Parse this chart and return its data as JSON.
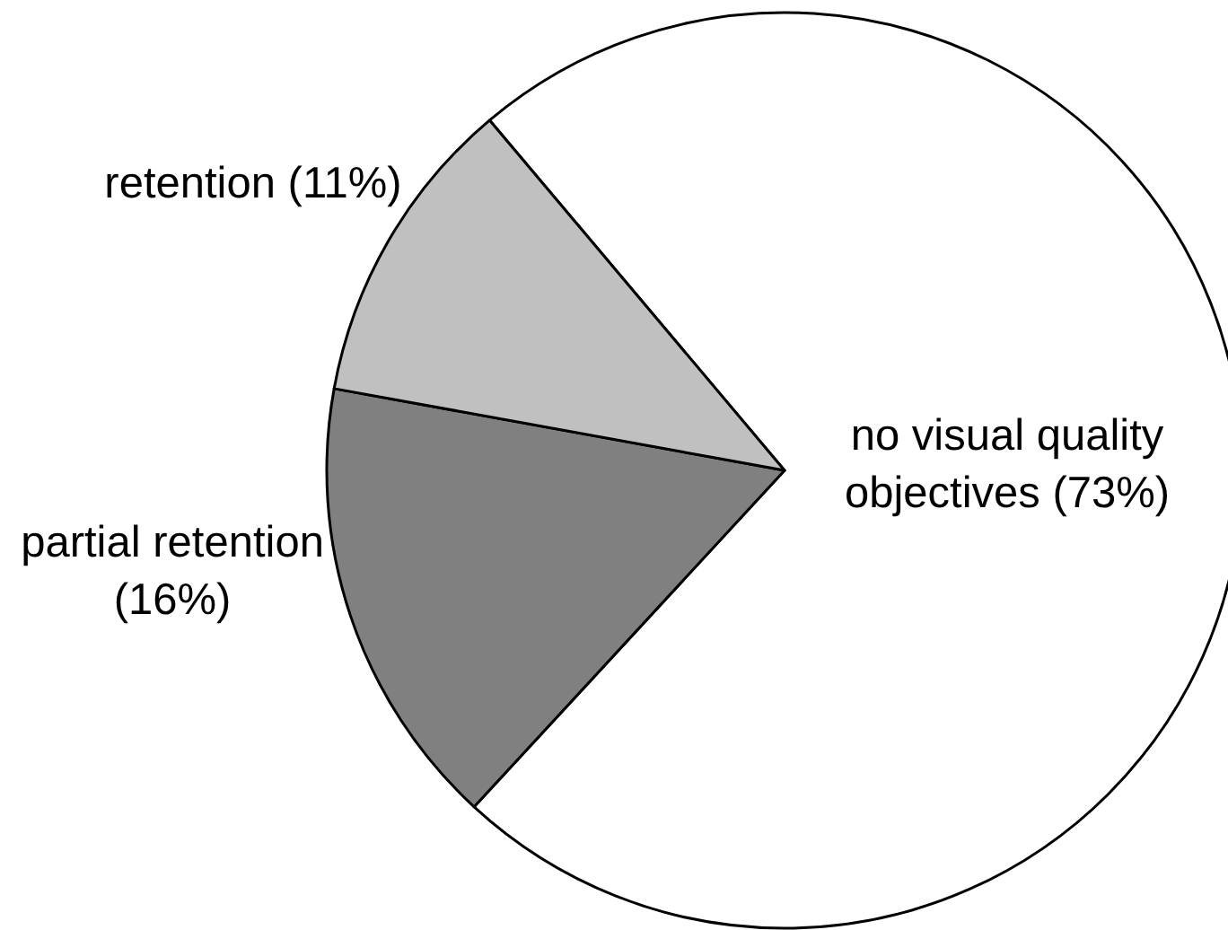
{
  "chart_data": {
    "type": "pie",
    "categories": [
      "no visual quality objectives",
      "partial retention",
      "retention"
    ],
    "values": [
      73,
      16,
      11
    ],
    "value_labels": [
      "(73%)",
      "(16%)",
      "(11%)"
    ],
    "colors": [
      "#ffffff",
      "#808080",
      "#c0c0c0"
    ]
  }
}
